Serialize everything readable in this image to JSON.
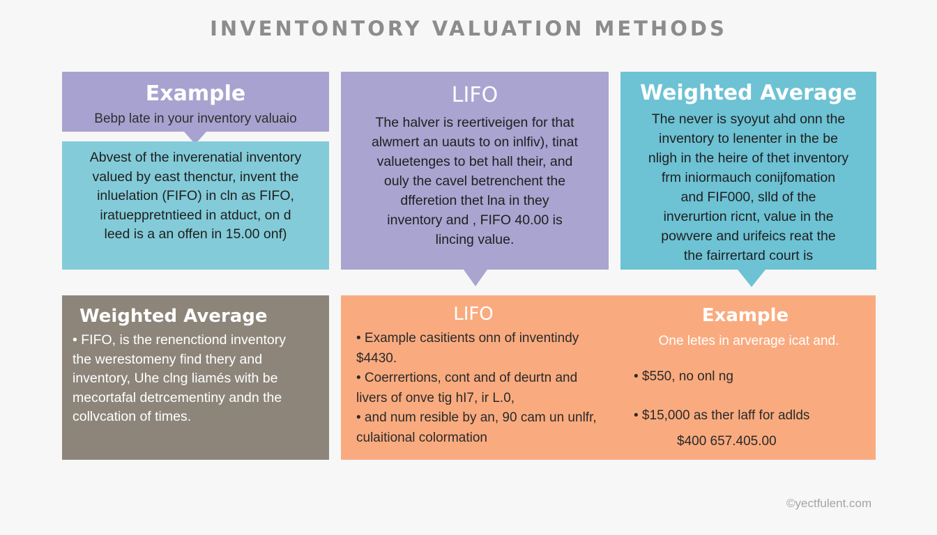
{
  "title": "INVENTONTORY VALUATION METHODS",
  "panel_top_left": {
    "heading": "Example",
    "subtitle": "Bebp late in your inventory valuaio",
    "body_lines": [
      "Abvest of the inverenatial inventory",
      "valued by east thenctur, invent the",
      "inluelation (FIFO) in cln as FIFO,",
      "iratueppretntieed in atduct, on d",
      "leed  is a an offen in 15.00 onf)"
    ]
  },
  "panel_top_middle": {
    "heading": "LIFO",
    "body_lines": [
      "The halver is reertiveigen for that",
      "alwmert an uauts to on inlfiv), tinat",
      "valuetenges to bet hall their, and",
      "ouly the cavel betrenchent the",
      "dfferetion thet lna in they",
      "inventory and , FIFO 40.00 is",
      "lincing value."
    ]
  },
  "panel_top_right": {
    "heading": "Weighted Average",
    "body_lines": [
      "The never is syoyut ahd onn the",
      "inventory to lenenter in the be",
      "nligh in the heire of thet inventory",
      "frm iniormauch conijfomation",
      "and FIF000, slld of  the",
      "inverurtion ricnt, value in the",
      "powvere and urifeics reat the",
      "the fairrertard court is"
    ]
  },
  "panel_bottom_left": {
    "heading": "Weighted Average",
    "body_lines": [
      "• FIFO, is the renenctiond inventory",
      "  the werestomeny find thery and",
      "  inventory, Uhe clng liamés with be",
      "  mecortafal detrcementiny andn the",
      "  collvcation of times."
    ]
  },
  "panel_bottom_right": {
    "left_heading": "LIFO",
    "left_lines": [
      "• Example casitients onn of inventindy",
      "  $4430.",
      "• Coerrertions, cont and of deurtn and",
      "  livers of onve tig hI7, ir L.0,",
      "• and num resible by an, 90 cam un unlfr,",
      "  culaitional colormation"
    ],
    "right_heading": "Example",
    "right_subtitle": "One letes in arverage icat and.",
    "right_line_1": "• $550, no onl ng",
    "right_line_2": "• $15,000 as ther laff for adlds",
    "right_line_3": "$400 657.405.00"
  },
  "watermark": "©yectfulent.com",
  "colors": {
    "background": "#f7f7f7",
    "purple": "#a8a2d0",
    "teal_light": "#83cbd8",
    "teal": "#6dc2d4",
    "taupe": "#8d857a",
    "orange": "#f9ab7f"
  }
}
